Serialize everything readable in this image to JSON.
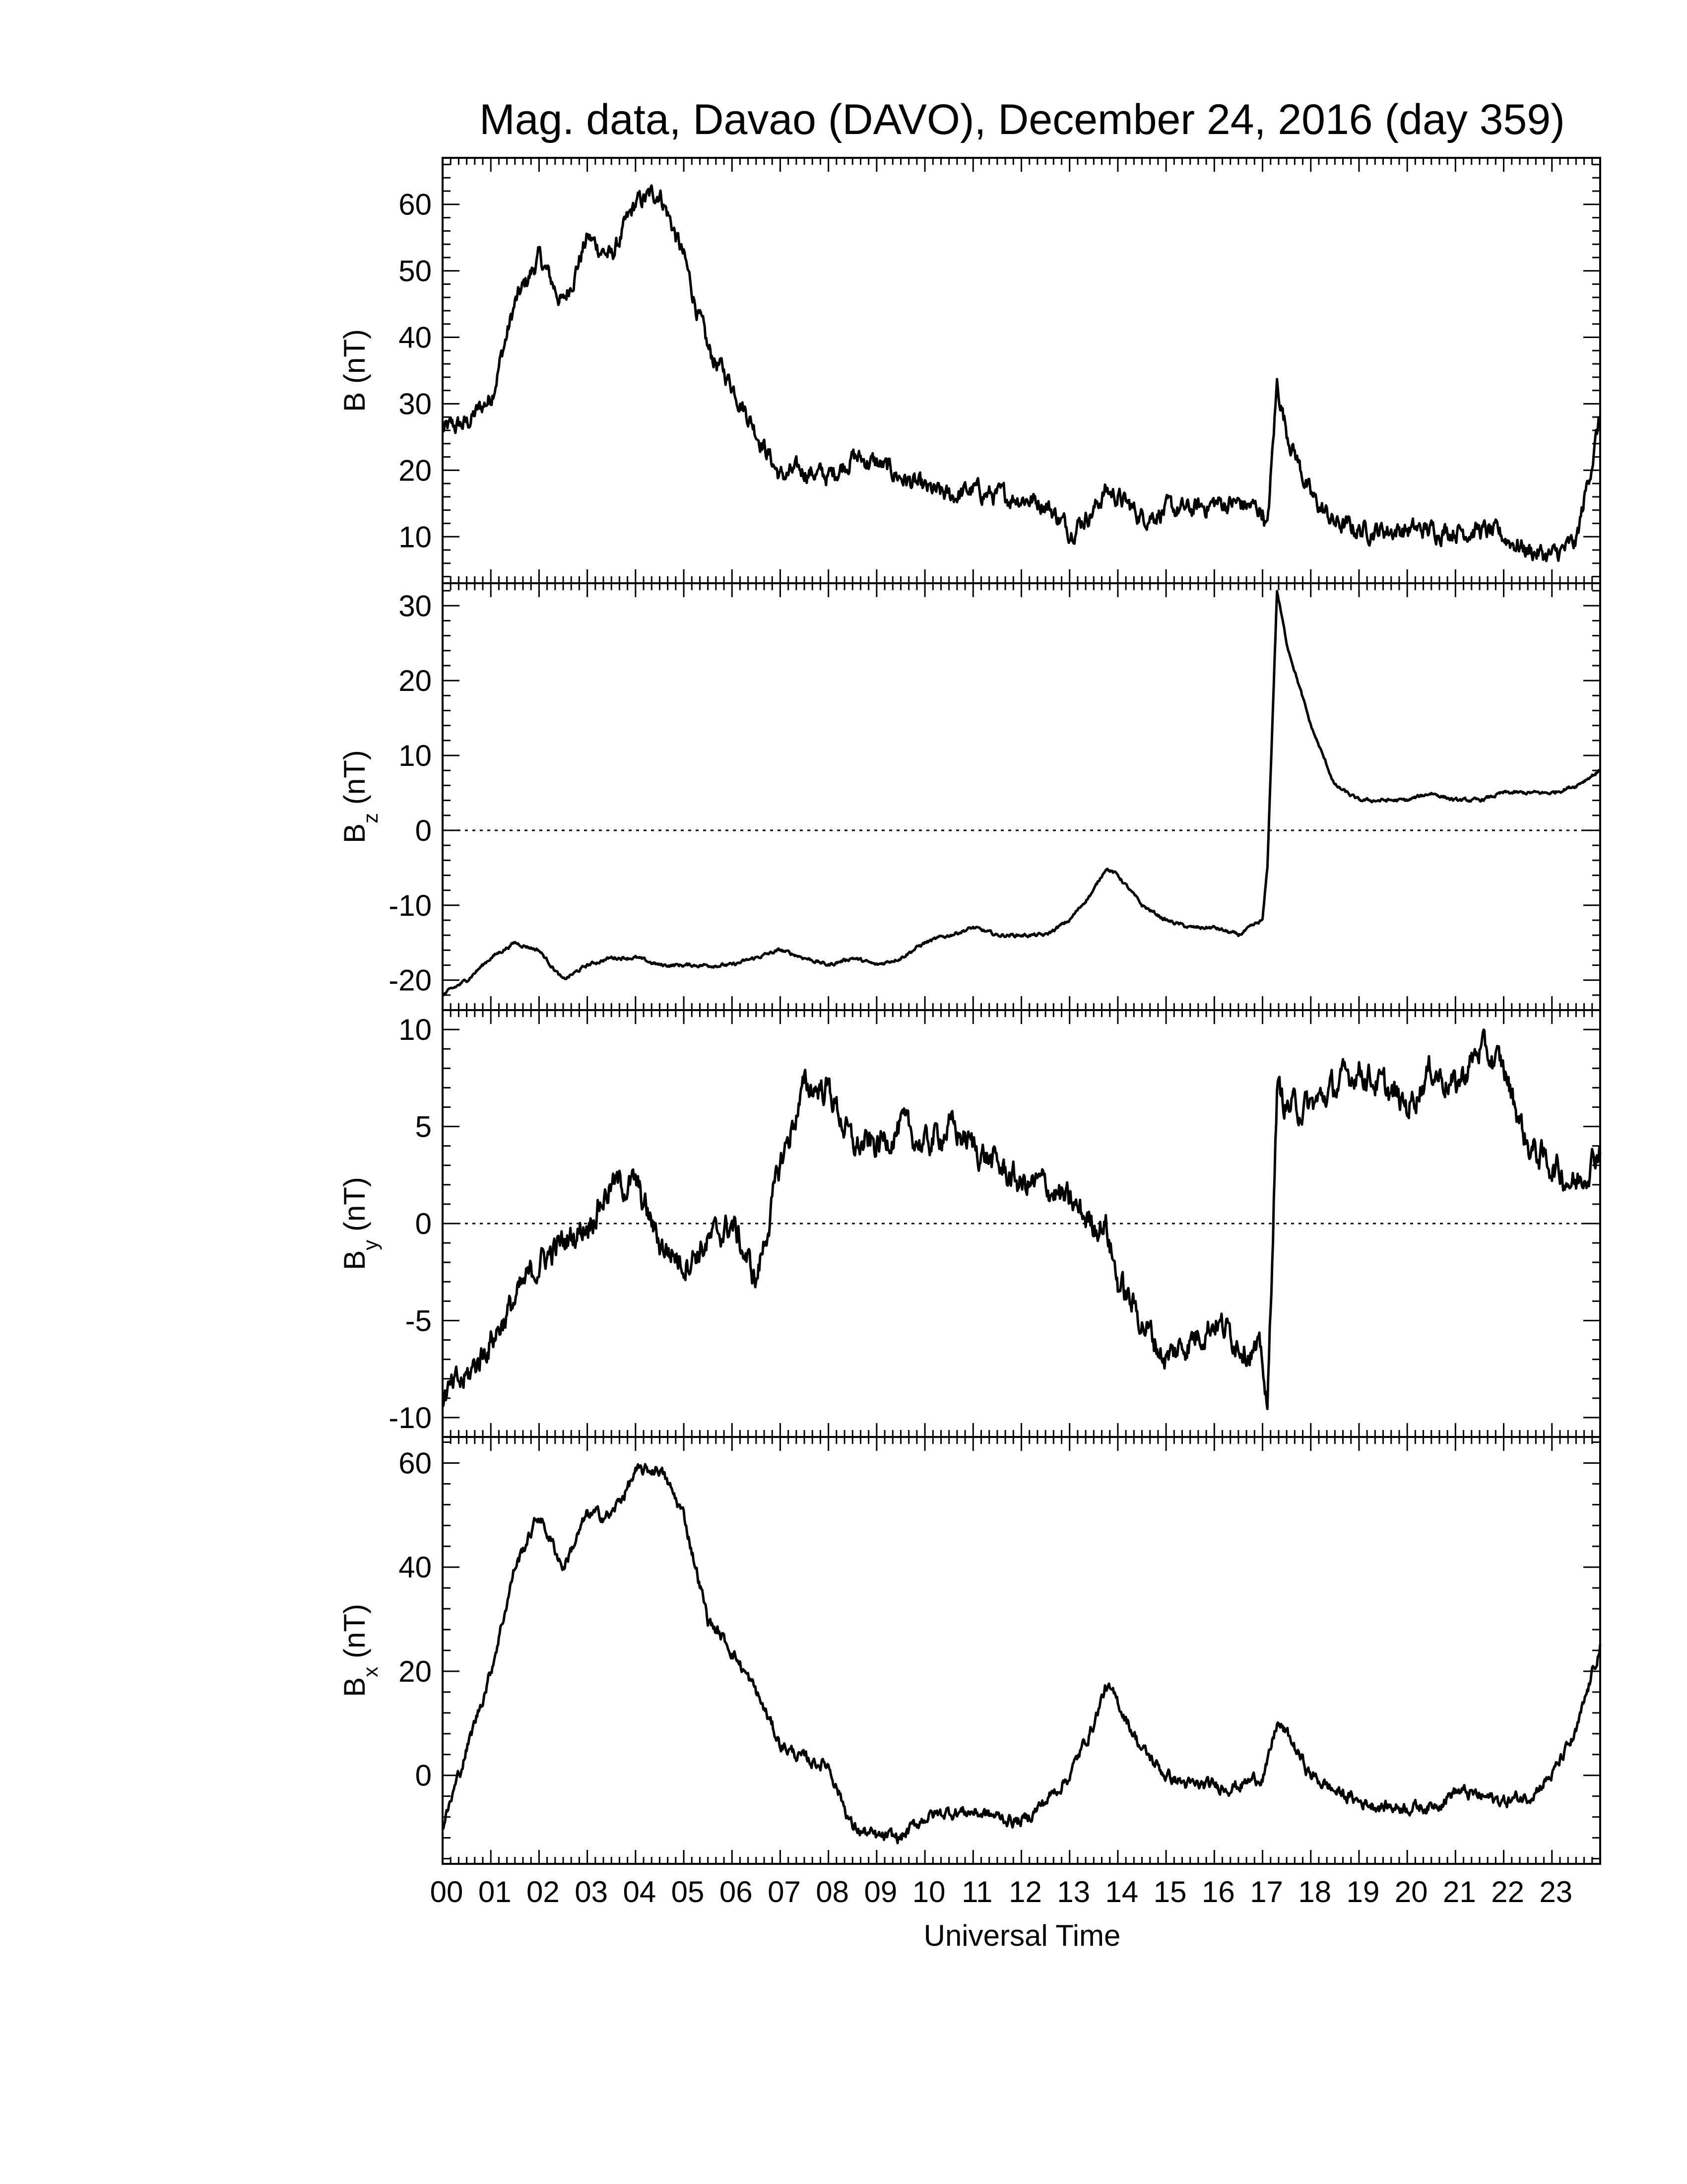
{
  "chart_data": {
    "type": "line",
    "title": "Mag. data, Davao (DAVO), December 24, 2016 (day 359)",
    "xlabel": "Universal Time",
    "x_unit": "hour UT",
    "xlim": [
      0,
      24
    ],
    "x_tick_labels": [
      "00",
      "01",
      "02",
      "03",
      "04",
      "05",
      "06",
      "07",
      "08",
      "09",
      "10",
      "11",
      "12",
      "13",
      "14",
      "15",
      "16",
      "17",
      "18",
      "19",
      "20",
      "21",
      "22",
      "23"
    ],
    "x": [
      0,
      0.5,
      1,
      1.5,
      2,
      2.5,
      3,
      3.5,
      4,
      4.5,
      5,
      5.5,
      6,
      6.5,
      7,
      7.5,
      8,
      8.5,
      9,
      9.5,
      10,
      10.5,
      11,
      11.5,
      12,
      12.5,
      13,
      13.5,
      13.75,
      14,
      14.5,
      15,
      15.5,
      16,
      16.5,
      17,
      17.1,
      17.3,
      17.5,
      18,
      18.5,
      19,
      19.5,
      20,
      20.5,
      21,
      21.5,
      22,
      22.5,
      23,
      23.5,
      24
    ],
    "panels": [
      {
        "ylabel": "B (nT)",
        "ylabel_main": "B",
        "ylabel_sub": "",
        "ylabel_unit": "(nT)",
        "ylim": [
          3,
          67
        ],
        "yticks": [
          10,
          20,
          30,
          40,
          50,
          60
        ],
        "zero_line": false,
        "values": [
          26,
          27,
          31,
          45,
          52,
          45,
          55,
          52,
          60,
          62,
          52,
          38,
          33,
          26,
          19,
          20,
          19,
          22,
          21,
          19,
          17,
          16,
          17,
          16,
          16,
          15,
          11,
          14,
          17,
          16,
          13,
          14,
          14,
          15,
          15,
          14,
          11,
          33,
          26,
          16,
          12,
          11,
          11,
          11,
          11,
          11,
          11,
          10,
          8,
          7,
          9,
          28
        ]
      },
      {
        "ylabel": "Bz (nT)",
        "ylabel_main": "B",
        "ylabel_sub": "z",
        "ylabel_unit": "(nT)",
        "ylim": [
          -24,
          33
        ],
        "yticks": [
          -20,
          -10,
          0,
          10,
          20,
          30
        ],
        "zero_line": true,
        "values": [
          -22,
          -20,
          -17,
          -15,
          -16,
          -20,
          -18,
          -17,
          -17,
          -18,
          -18,
          -18,
          -18,
          -17,
          -16,
          -17,
          -18,
          -17,
          -18,
          -17,
          -15,
          -14,
          -13,
          -14,
          -14,
          -14,
          -12,
          -8,
          -5,
          -6,
          -10,
          -12,
          -13,
          -13,
          -14,
          -12,
          -5,
          32,
          25,
          14,
          6,
          4,
          4,
          4,
          5,
          4,
          4,
          5,
          5,
          5,
          6,
          8
        ]
      },
      {
        "ylabel": "By (nT)",
        "ylabel_main": "B",
        "ylabel_sub": "y",
        "ylabel_unit": "(nT)",
        "ylim": [
          -11,
          11
        ],
        "yticks": [
          -10,
          -5,
          0,
          5,
          10
        ],
        "zero_line": true,
        "values": [
          -9,
          -8,
          -6,
          -4,
          -2,
          -1,
          0,
          2,
          2,
          -1,
          -2,
          -1,
          0,
          -3,
          3,
          7,
          7,
          4,
          4,
          5,
          4,
          5,
          4,
          3,
          2,
          2,
          1,
          0,
          0,
          -3,
          -5,
          -7,
          -6,
          -5,
          -6,
          -7,
          -10,
          7,
          6,
          6,
          7,
          8,
          7,
          6,
          8,
          7,
          9,
          8,
          4,
          3,
          2,
          4
        ]
      },
      {
        "ylabel": "Bx (nT)",
        "ylabel_main": "B",
        "ylabel_sub": "x",
        "ylabel_unit": "(nT)",
        "ylim": [
          -17,
          65
        ],
        "yticks": [
          0,
          20,
          40,
          60
        ],
        "zero_line": false,
        "values": [
          -10,
          5,
          20,
          40,
          50,
          40,
          50,
          50,
          58,
          59,
          50,
          30,
          24,
          16,
          6,
          3,
          2,
          -10,
          -12,
          -12,
          -8,
          -7,
          -7,
          -8,
          -9,
          -5,
          0,
          10,
          17,
          14,
          5,
          0,
          -2,
          -2,
          -2,
          0,
          2,
          10,
          8,
          0,
          -3,
          -5,
          -6,
          -6,
          -6,
          -3,
          -4,
          -5,
          -4,
          0,
          8,
          25
        ]
      }
    ]
  }
}
